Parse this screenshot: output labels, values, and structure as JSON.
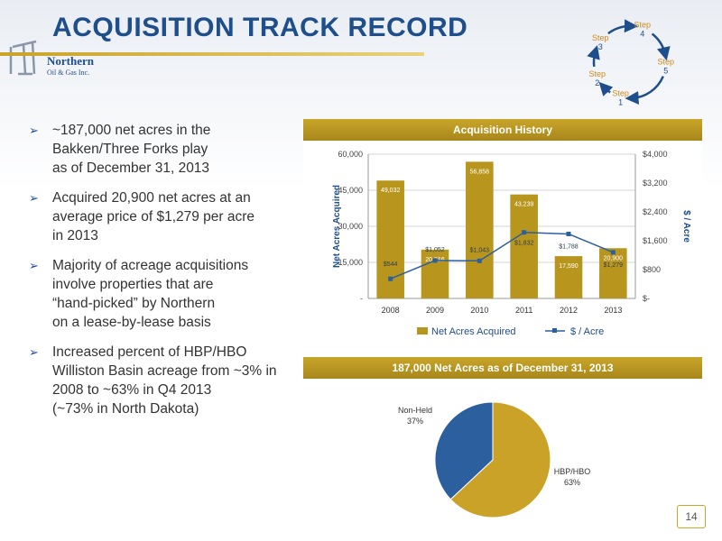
{
  "title": "ACQUISITION TRACK RECORD",
  "logo": {
    "line1": "Northern",
    "line2": "Oil & Gas Inc."
  },
  "cycle": {
    "steps": [
      {
        "word": "Step",
        "num": "1"
      },
      {
        "word": "Step",
        "num": "2"
      },
      {
        "word": "Step",
        "num": "3"
      },
      {
        "word": "Step",
        "num": "4"
      },
      {
        "word": "Step",
        "num": "5"
      }
    ],
    "color": "#1f4e8c"
  },
  "bullets": [
    {
      "lines": [
        "~187,000 net acres in the",
        "Bakken/Three Forks play",
        "as of December 31, 2013"
      ]
    },
    {
      "lines": [
        "Acquired 20,900 net acres at an",
        "average price of $1,279 per acre",
        "in 2013"
      ]
    },
    {
      "lines": [
        "Majority of acreage acquisitions",
        "involve properties that are",
        "“hand-picked” by Northern",
        "on a lease-by-lease basis"
      ]
    },
    {
      "lines": [
        "Increased percent of HBP/HBO",
        "Williston Basin acreage from ~3% in",
        "2008 to ~63% in Q4 2013",
        "(~73% in North Dakota)"
      ]
    }
  ],
  "page_number": "14",
  "chart_data": [
    {
      "type": "bar",
      "title": "Acquisition History",
      "categories": [
        "2008",
        "2009",
        "2010",
        "2011",
        "2012",
        "2013"
      ],
      "series": [
        {
          "name": "Net Acres Acquired",
          "type": "bar",
          "axis": "left",
          "values": [
            49032,
            20316,
            56858,
            43239,
            17590,
            20900
          ],
          "labels": [
            "49,032",
            "20,316",
            "56,858",
            "43,239",
            "17,590",
            "20,900"
          ],
          "color": "#b8961e"
        },
        {
          "name": "$ / Acre",
          "type": "line",
          "axis": "right",
          "values": [
            544,
            1052,
            1043,
            1832,
            1788,
            1279
          ],
          "labels": [
            "$544",
            "$1,052",
            "$1,043",
            "$1,832",
            "$1,788",
            "$1,279"
          ],
          "color": "#2c5f9e"
        }
      ],
      "ylabel": "Net Acres Acquired",
      "y2label": "$ / Acre",
      "ylim": [
        0,
        60000
      ],
      "y2lim": [
        0,
        4000
      ],
      "yticks": [
        "-",
        "15,000",
        "30,000",
        "45,000",
        "60,000"
      ],
      "y2ticks": [
        "$-",
        "$800",
        "$1,600",
        "$2,400",
        "$3,200",
        "$4,000"
      ],
      "legend": "bottom"
    },
    {
      "type": "pie",
      "title": "187,000 Net Acres as of December 31, 2013",
      "slices": [
        {
          "name": "HBP/HBO",
          "value": 63,
          "label": "63%",
          "color": "#c9a227"
        },
        {
          "name": "Non-Held",
          "value": 37,
          "label": "37%",
          "color": "#2c5f9e"
        }
      ]
    }
  ]
}
